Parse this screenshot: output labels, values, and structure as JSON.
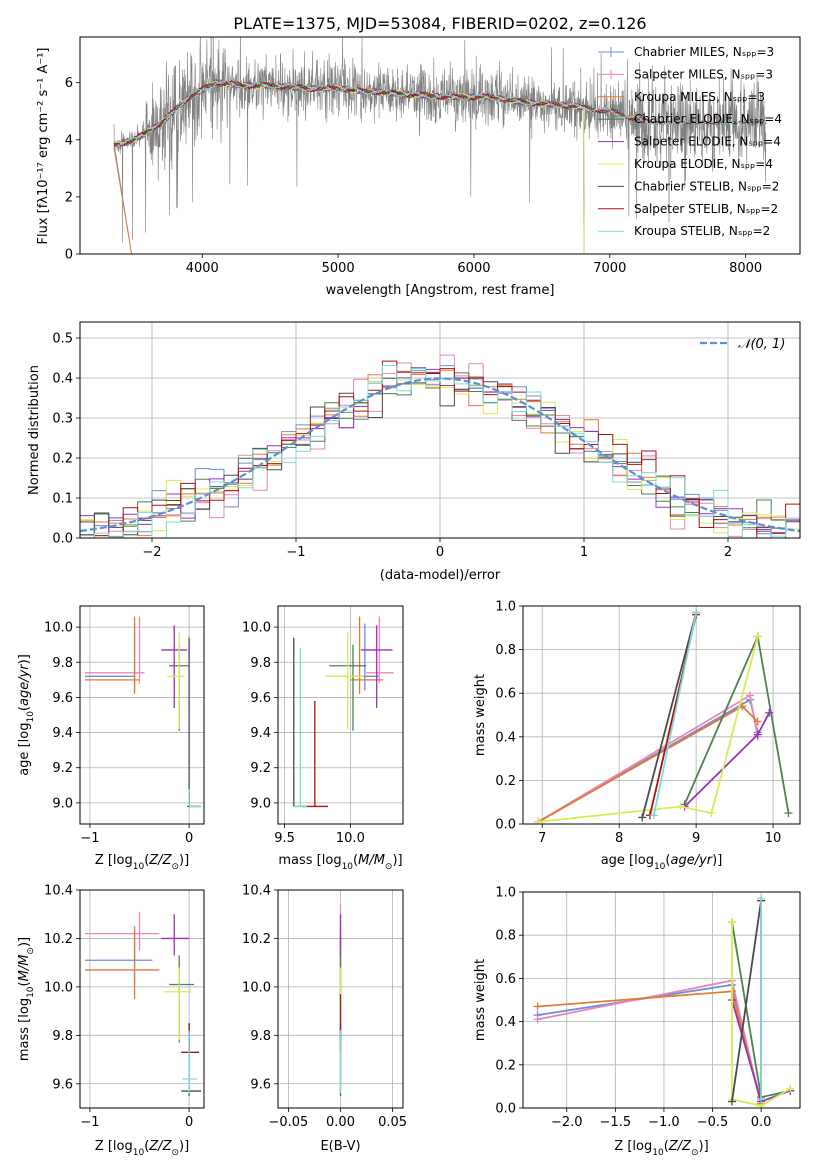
{
  "title": "PLATE=1375, MJD=53084, FIBERID=0202, z=0.126",
  "colors": {
    "Chabrier MILES": "#6b8fd6",
    "Salpeter MILES": "#e887b8",
    "Kroupa MILES": "#e07b35",
    "Chabrier ELODIE": "#4f8050",
    "Salpeter ELODIE": "#9932b8",
    "Kroupa ELODIE": "#d6ec55",
    "Chabrier STELIB": "#4a4a4a",
    "Salpeter STELIB": "#b01010",
    "Kroupa STELIB": "#7fdada",
    "data": "#808080",
    "gaussian": "#5b8fd6"
  },
  "chart_data": [
    {
      "type": "line",
      "name": "spectrum",
      "xlabel": "wavelength [Angstrom, rest frame]",
      "ylabel": "Flux [fλ10⁻¹⁷ erg cm⁻² s⁻¹ A⁻¹]",
      "xlim": [
        3100,
        8400
      ],
      "ylim": [
        0,
        7.6
      ],
      "xticks": [
        "4000",
        "5000",
        "6000",
        "7000",
        "8000"
      ],
      "yticks": [
        "0",
        "2",
        "4",
        "6"
      ],
      "legend": [
        "Chabrier MILES, Nₛₚₚ=3",
        "Salpeter MILES, Nₛₚₚ=3",
        "Kroupa MILES, Nₛₚₚ=3",
        "Chabrier ELODIE, Nₛₚₚ=4",
        "Salpeter ELODIE, Nₛₚₚ=4",
        "Kroupa ELODIE, Nₛₚₚ=4",
        "Chabrier STELIB, Nₛₚₚ=2",
        "Salpeter STELIB, Nₛₚₚ=2",
        "Kroupa STELIB, Nₛₚₚ=2"
      ],
      "legend_placement": "right",
      "model_continuum": {
        "x": [
          3350,
          3500,
          3700,
          3900,
          4100,
          4300,
          4500,
          4800,
          5000,
          5200,
          5500,
          5800,
          6100,
          6400,
          6700,
          7000,
          7300
        ],
        "y": [
          3.8,
          4.0,
          4.6,
          5.5,
          6.0,
          5.9,
          5.9,
          5.8,
          5.8,
          5.7,
          5.6,
          5.5,
          5.5,
          5.3,
          5.2,
          5.0,
          4.6
        ]
      }
    },
    {
      "type": "histogram",
      "name": "residuals",
      "xlabel": "(data-model)/error",
      "ylabel": "Normed distribution",
      "xlim": [
        -2.5,
        2.5
      ],
      "ylim": [
        0,
        0.54
      ],
      "xticks": [
        "−2",
        "−1",
        "0",
        "1",
        "2"
      ],
      "yticks": [
        "0.0",
        "0.1",
        "0.2",
        "0.3",
        "0.4",
        "0.5"
      ],
      "legend": "𝒩(0, 1)",
      "legend_placement": "top-right",
      "bin_width": 0.1,
      "gaussian": {
        "mean": 0,
        "sigma": 1
      }
    },
    {
      "type": "scatter",
      "name": "age-vs-Z",
      "xlabel": "Z [log₁₀(Z/Z⊙)]",
      "ylabel": "age  [log₁₀(age/yr)]",
      "xlim": [
        -1.1,
        0.15
      ],
      "ylim": [
        8.88,
        10.12
      ],
      "xticks": [
        "−1",
        "0"
      ],
      "yticks": [
        "9.0",
        "9.2",
        "9.4",
        "9.6",
        "9.8",
        "10.0"
      ],
      "points": [
        {
          "model": "Chabrier MILES",
          "x": -0.55,
          "y": 9.72,
          "xerr": [
            0.5,
            0.0
          ],
          "yerr": [
            0.08,
            0.3
          ]
        },
        {
          "model": "Salpeter MILES",
          "x": -0.5,
          "y": 9.74,
          "xerr": [
            0.55,
            0.05
          ],
          "yerr": [
            0.06,
            0.32
          ]
        },
        {
          "model": "Kroupa MILES",
          "x": -0.55,
          "y": 9.7,
          "xerr": [
            0.5,
            0.05
          ],
          "yerr": [
            0.08,
            0.36
          ]
        },
        {
          "model": "Chabrier ELODIE",
          "x": -0.1,
          "y": 9.78,
          "xerr": [
            0.1,
            0.1
          ],
          "yerr": [
            0.37,
            0.12
          ]
        },
        {
          "model": "Salpeter ELODIE",
          "x": -0.15,
          "y": 9.87,
          "xerr": [
            0.13,
            0.13
          ],
          "yerr": [
            0.33,
            0.14
          ]
        },
        {
          "model": "Kroupa ELODIE",
          "x": -0.1,
          "y": 9.72,
          "xerr": [
            0.12,
            0.05
          ],
          "yerr": [
            0.3,
            0.25
          ]
        },
        {
          "model": "Chabrier STELIB",
          "x": 0.0,
          "y": 8.98,
          "xerr": [
            0.02,
            0.12
          ],
          "yerr": [
            0.0,
            0.96
          ]
        },
        {
          "model": "Salpeter STELIB",
          "x": 0.0,
          "y": 8.98,
          "xerr": [
            0.0,
            0.1
          ],
          "yerr": [
            0.0,
            0.1
          ]
        },
        {
          "model": "Kroupa STELIB",
          "x": 0.0,
          "y": 8.98,
          "xerr": [
            0.0,
            0.12
          ],
          "yerr": [
            0.0,
            0.1
          ]
        }
      ]
    },
    {
      "type": "scatter",
      "name": "age-vs-mass",
      "xlabel": "mass [log₁₀(M/M⊙)]",
      "ylabel": "",
      "xlim": [
        9.45,
        10.4
      ],
      "ylim": [
        8.88,
        10.12
      ],
      "xticks": [
        "9.5",
        "10.0"
      ],
      "yticks": [
        "9.0",
        "9.2",
        "9.4",
        "9.6",
        "9.8",
        "10.0"
      ],
      "points": [
        {
          "model": "Chabrier MILES",
          "x": 10.11,
          "y": 9.72,
          "xerr": [
            0.11,
            0.11
          ],
          "yerr": [
            0.08,
            0.3
          ]
        },
        {
          "model": "Salpeter MILES",
          "x": 10.22,
          "y": 9.74,
          "xerr": [
            0.1,
            0.11
          ],
          "yerr": [
            0.06,
            0.32
          ]
        },
        {
          "model": "Kroupa MILES",
          "x": 10.07,
          "y": 9.7,
          "xerr": [
            0.07,
            0.18
          ],
          "yerr": [
            0.08,
            0.36
          ]
        },
        {
          "model": "Chabrier ELODIE",
          "x": 10.02,
          "y": 9.78,
          "xerr": [
            0.18,
            0.1
          ],
          "yerr": [
            0.37,
            0.12
          ]
        },
        {
          "model": "Salpeter ELODIE",
          "x": 10.2,
          "y": 9.87,
          "xerr": [
            0.12,
            0.12
          ],
          "yerr": [
            0.33,
            0.14
          ]
        },
        {
          "model": "Kroupa ELODIE",
          "x": 9.98,
          "y": 9.72,
          "xerr": [
            0.17,
            0.12
          ],
          "yerr": [
            0.3,
            0.25
          ]
        },
        {
          "model": "Chabrier STELIB",
          "x": 9.57,
          "y": 8.98,
          "xerr": [
            0.0,
            0.1
          ],
          "yerr": [
            0.0,
            0.96
          ]
        },
        {
          "model": "Salpeter STELIB",
          "x": 9.73,
          "y": 8.98,
          "xerr": [
            0.1,
            0.1
          ],
          "yerr": [
            0.0,
            0.6
          ]
        },
        {
          "model": "Kroupa STELIB",
          "x": 9.62,
          "y": 8.98,
          "xerr": [
            0.05,
            0.05
          ],
          "yerr": [
            0.0,
            0.9
          ]
        }
      ]
    },
    {
      "type": "line",
      "name": "weight-vs-age",
      "xlabel": "age  [log₁₀(age/yr)]",
      "ylabel": "mass weight",
      "xlim": [
        6.75,
        10.35
      ],
      "ylim": [
        0,
        1.0
      ],
      "xticks": [
        "7",
        "8",
        "9",
        "10"
      ],
      "yticks": [
        "0.0",
        "0.2",
        "0.4",
        "0.6",
        "0.8",
        "1.0"
      ],
      "series": [
        {
          "model": "Chabrier MILES",
          "x": [
            6.95,
            9.7,
            9.8
          ],
          "y": [
            0.01,
            0.57,
            0.42
          ]
        },
        {
          "model": "Salpeter MILES",
          "x": [
            6.95,
            9.7,
            9.8
          ],
          "y": [
            0.01,
            0.59,
            0.4
          ]
        },
        {
          "model": "Kroupa MILES",
          "x": [
            6.95,
            9.6,
            9.8
          ],
          "y": [
            0.01,
            0.54,
            0.47
          ]
        },
        {
          "model": "Chabrier ELODIE",
          "x": [
            8.85,
            9.8,
            10.2
          ],
          "y": [
            0.09,
            0.86,
            0.05
          ]
        },
        {
          "model": "Salpeter ELODIE",
          "x": [
            8.85,
            9.8,
            9.95
          ],
          "y": [
            0.08,
            0.41,
            0.51
          ]
        },
        {
          "model": "Kroupa ELODIE",
          "x": [
            6.95,
            8.8,
            9.2,
            9.8
          ],
          "y": [
            0.01,
            0.08,
            0.05,
            0.86
          ]
        },
        {
          "model": "Chabrier STELIB",
          "x": [
            8.3,
            9.0
          ],
          "y": [
            0.03,
            0.97
          ]
        },
        {
          "model": "Salpeter STELIB",
          "x": [
            8.4,
            9.0
          ],
          "y": [
            0.04,
            0.96
          ]
        },
        {
          "model": "Kroupa STELIB",
          "x": [
            8.45,
            9.0
          ],
          "y": [
            0.04,
            0.97
          ]
        }
      ]
    },
    {
      "type": "scatter",
      "name": "mass-vs-Z",
      "xlabel": "Z [log₁₀(Z/Z⊙)]",
      "ylabel": "mass [log₁₀(M/M⊙)]",
      "xlim": [
        -1.1,
        0.15
      ],
      "ylim": [
        9.5,
        10.4
      ],
      "xticks": [
        "−1",
        "0"
      ],
      "yticks": [
        "9.6",
        "9.8",
        "10.0",
        "10.2",
        "10.4"
      ],
      "points": [
        {
          "model": "Chabrier MILES",
          "x": -0.55,
          "y": 10.11,
          "xerr": [
            0.5,
            0.18
          ],
          "yerr": [
            0.1,
            0.12
          ]
        },
        {
          "model": "Salpeter MILES",
          "x": -0.5,
          "y": 10.22,
          "xerr": [
            0.55,
            0.2
          ],
          "yerr": [
            0.07,
            0.09
          ]
        },
        {
          "model": "Kroupa MILES",
          "x": -0.55,
          "y": 10.07,
          "xerr": [
            0.5,
            0.25
          ],
          "yerr": [
            0.12,
            0.18
          ]
        },
        {
          "model": "Chabrier ELODIE",
          "x": -0.1,
          "y": 10.01,
          "xerr": [
            0.1,
            0.15
          ],
          "yerr": [
            0.24,
            0.12
          ]
        },
        {
          "model": "Salpeter ELODIE",
          "x": -0.15,
          "y": 10.2,
          "xerr": [
            0.13,
            0.15
          ],
          "yerr": [
            0.07,
            0.1
          ]
        },
        {
          "model": "Kroupa ELODIE",
          "x": -0.1,
          "y": 9.98,
          "xerr": [
            0.15,
            0.12
          ],
          "yerr": [
            0.2,
            0.1
          ]
        },
        {
          "model": "Chabrier STELIB",
          "x": 0.0,
          "y": 9.57,
          "xerr": [
            0.08,
            0.12
          ],
          "yerr": [
            0.02,
            0.28
          ]
        },
        {
          "model": "Salpeter STELIB",
          "x": 0.0,
          "y": 9.73,
          "xerr": [
            0.08,
            0.1
          ],
          "yerr": [
            0.0,
            0.12
          ]
        },
        {
          "model": "Kroupa STELIB",
          "x": 0.0,
          "y": 9.62,
          "xerr": [
            0.07,
            0.08
          ],
          "yerr": [
            0.06,
            0.2
          ]
        }
      ]
    },
    {
      "type": "scatter",
      "name": "mass-vs-EBV",
      "xlabel": "E(B-V)",
      "ylabel": "",
      "xlim": [
        -0.06,
        0.06
      ],
      "ylim": [
        9.5,
        10.4
      ],
      "xticks": [
        "−0.05",
        "0.00",
        "0.05"
      ],
      "yticks": [
        "9.6",
        "9.8",
        "10.0",
        "10.2",
        "10.4"
      ],
      "points": [
        {
          "model": "Chabrier MILES",
          "x": 0.0,
          "y": 10.11,
          "yerr": [
            0.1,
            0.12
          ]
        },
        {
          "model": "Salpeter MILES",
          "x": 0.0,
          "y": 10.22,
          "yerr": [
            0.07,
            0.12
          ]
        },
        {
          "model": "Kroupa MILES",
          "x": 0.0,
          "y": 10.07,
          "yerr": [
            0.12,
            0.18
          ]
        },
        {
          "model": "Chabrier ELODIE",
          "x": 0.0,
          "y": 10.01,
          "yerr": [
            0.24,
            0.12
          ]
        },
        {
          "model": "Salpeter ELODIE",
          "x": 0.0,
          "y": 10.2,
          "yerr": [
            0.07,
            0.1
          ]
        },
        {
          "model": "Kroupa ELODIE",
          "x": 0.0,
          "y": 9.98,
          "yerr": [
            0.2,
            0.1
          ]
        },
        {
          "model": "Chabrier STELIB",
          "x": 0.0,
          "y": 9.57,
          "yerr": [
            0.02,
            0.28
          ]
        },
        {
          "model": "Salpeter STELIB",
          "x": 0.0,
          "y": 9.73,
          "yerr": [
            0.0,
            0.24
          ]
        },
        {
          "model": "Kroupa STELIB",
          "x": 0.0,
          "y": 9.62,
          "yerr": [
            0.06,
            0.2
          ]
        }
      ]
    },
    {
      "type": "line",
      "name": "weight-vs-Z",
      "xlabel": "Z [log₁₀(Z/Z⊙)]",
      "ylabel": "mass weight",
      "xlim": [
        -2.45,
        0.4
      ],
      "ylim": [
        0,
        1.0
      ],
      "xticks": [
        "−2.0",
        "−1.5",
        "−1.0",
        "−0.5",
        "0.0"
      ],
      "yticks": [
        "0.0",
        "0.2",
        "0.4",
        "0.6",
        "0.8",
        "1.0"
      ],
      "series": [
        {
          "model": "Chabrier MILES",
          "x": [
            -2.3,
            -0.3,
            0.0
          ],
          "y": [
            0.43,
            0.57,
            0.02
          ]
        },
        {
          "model": "Salpeter MILES",
          "x": [
            -2.3,
            -0.3,
            0.0
          ],
          "y": [
            0.41,
            0.59,
            0.01
          ]
        },
        {
          "model": "Kroupa MILES",
          "x": [
            -2.3,
            -0.3,
            0.0
          ],
          "y": [
            0.47,
            0.54,
            0.02
          ]
        },
        {
          "model": "Chabrier ELODIE",
          "x": [
            -0.3,
            0.0,
            0.3
          ],
          "y": [
            0.86,
            0.05,
            0.08
          ]
        },
        {
          "model": "Salpeter ELODIE",
          "x": [
            -0.3,
            0.0,
            0.3
          ],
          "y": [
            0.5,
            0.03,
            0.08
          ]
        },
        {
          "model": "Kroupa ELODIE",
          "x": [
            -0.3,
            -0.3,
            0.0,
            0.3
          ],
          "y": [
            0.86,
            0.04,
            0.01,
            0.09
          ]
        },
        {
          "model": "Chabrier STELIB",
          "x": [
            -0.3,
            0.0
          ],
          "y": [
            0.03,
            0.96
          ]
        },
        {
          "model": "Salpeter STELIB",
          "x": [
            0.0,
            0.0
          ],
          "y": [
            0.04,
            0.96
          ]
        },
        {
          "model": "Kroupa STELIB",
          "x": [
            0.0,
            0.0
          ],
          "y": [
            0.04,
            0.97
          ]
        }
      ]
    }
  ]
}
